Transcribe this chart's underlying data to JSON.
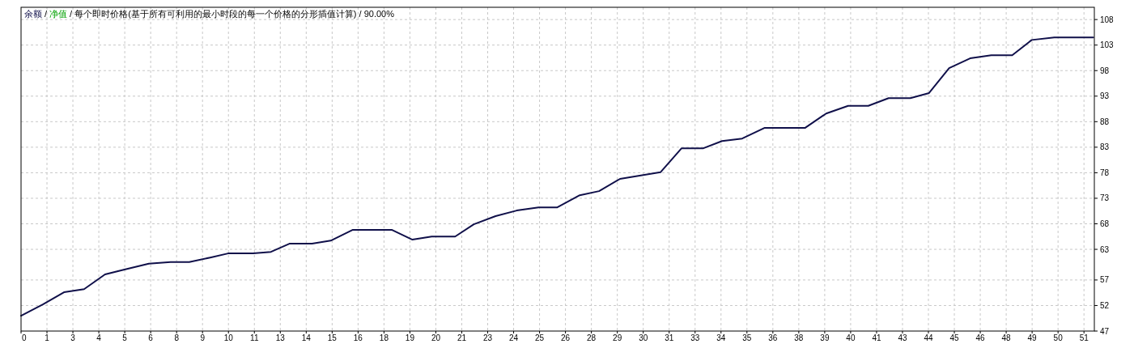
{
  "chart_data": {
    "type": "line",
    "title": "/ 每个即时价格(基于所有可利用的最小时段的每一个价格的分形插值计算) / 90.00%",
    "x": [
      0,
      1.05,
      2.07,
      3.04,
      4.05,
      4.95,
      6.16,
      7.21,
      8.11,
      9.12,
      9.98,
      11.19,
      12.05,
      12.94,
      14.03,
      14.93,
      15.98,
      17.89,
      18.87,
      19.8,
      20.93,
      21.83,
      22.88,
      23.9,
      24.95,
      25.84,
      26.94,
      27.87,
      28.88,
      30.83,
      31.85,
      32.9,
      33.8,
      34.77,
      35.86,
      37.81,
      38.82,
      39.88,
      40.85,
      41.83,
      42.88,
      43.78,
      44.75,
      45.76,
      46.78,
      47.79,
      48.73,
      49.82,
      51.7
    ],
    "series": [
      {
        "name": "余额",
        "color": "#10104a",
        "values": [
          50.0,
          52.2,
          54.6,
          55.2,
          58.1,
          59.0,
          60.2,
          60.5,
          60.5,
          61.4,
          62.2,
          62.2,
          62.5,
          64.1,
          64.1,
          64.7,
          66.8,
          66.8,
          64.9,
          65.5,
          65.5,
          67.9,
          69.5,
          70.6,
          71.2,
          71.2,
          73.6,
          74.4,
          76.8,
          78.1,
          82.8,
          82.8,
          84.2,
          84.7,
          86.8,
          86.8,
          89.6,
          91.1,
          91.1,
          92.6,
          92.6,
          93.6,
          98.5,
          100.4,
          101.0,
          101.0,
          104.0,
          104.5,
          104.5
        ]
      },
      {
        "name": "净值",
        "color": "#00a000",
        "values": [
          null,
          null,
          null,
          null,
          null,
          null,
          null,
          null,
          null,
          null,
          null,
          null,
          null,
          null,
          null,
          null,
          null,
          null,
          null,
          null,
          null,
          null,
          null,
          null,
          null,
          null,
          null,
          null,
          null,
          null,
          null,
          null,
          null,
          null,
          null,
          null,
          null,
          null,
          null,
          null,
          null,
          null,
          null,
          null,
          null,
          null,
          null,
          null,
          null
        ]
      }
    ],
    "xlim": [
      0,
      51.75
    ],
    "xticks": [
      0,
      {
        "value": 1.25,
        "label": "1"
      },
      {
        "value": 2.5,
        "label": "3"
      },
      {
        "value": 3.75,
        "label": "4"
      },
      5,
      {
        "value": 6.25,
        "label": "6"
      },
      {
        "value": 7.5,
        "label": "8"
      },
      {
        "value": 8.75,
        "label": "9"
      },
      10,
      {
        "value": 11.25,
        "label": "11"
      },
      {
        "value": 12.5,
        "label": "13"
      },
      {
        "value": 13.75,
        "label": "14"
      },
      15,
      {
        "value": 16.25,
        "label": "16"
      },
      {
        "value": 17.5,
        "label": "18"
      },
      {
        "value": 18.75,
        "label": "19"
      },
      20,
      {
        "value": 21.25,
        "label": "21"
      },
      {
        "value": 22.5,
        "label": "23"
      },
      {
        "value": 23.75,
        "label": "24"
      },
      25,
      {
        "value": 26.25,
        "label": "26"
      },
      {
        "value": 27.5,
        "label": "28"
      },
      {
        "value": 28.75,
        "label": "29"
      },
      30,
      {
        "value": 31.25,
        "label": "31"
      },
      {
        "value": 32.5,
        "label": "33"
      },
      {
        "value": 33.75,
        "label": "34"
      },
      35,
      {
        "value": 36.25,
        "label": "36"
      },
      {
        "value": 37.5,
        "label": "38"
      },
      {
        "value": 38.75,
        "label": "39"
      },
      40,
      {
        "value": 41.25,
        "label": "41"
      },
      {
        "value": 42.5,
        "label": "43"
      },
      {
        "value": 43.75,
        "label": "44"
      },
      45,
      {
        "value": 46.25,
        "label": "46"
      },
      {
        "value": 47.5,
        "label": "48"
      },
      {
        "value": 48.75,
        "label": "49"
      },
      50,
      {
        "value": 51.25,
        "label": "51"
      }
    ],
    "ylim": [
      47,
      110.4
    ],
    "yticks": [
      47,
      52,
      57,
      63,
      68,
      73,
      78,
      83,
      88,
      93,
      98,
      103,
      108
    ],
    "grid": true,
    "legend": "top left",
    "annotations": [
      "/"
    ]
  }
}
